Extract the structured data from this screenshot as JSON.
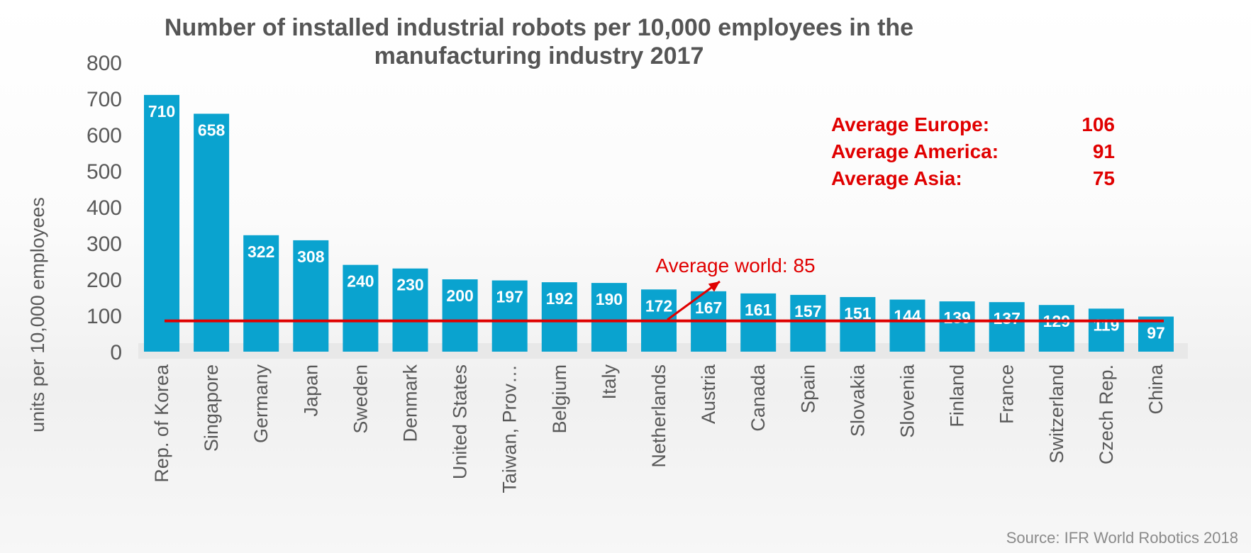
{
  "title_line1": "Number of installed industrial robots per 10,000 employees in the",
  "title_line2": "manufacturing industry 2017",
  "source": "Source: IFR World Robotics 2018",
  "averages": [
    {
      "label": "Average Europe:",
      "value": "106"
    },
    {
      "label": "Average America:",
      "value": "91"
    },
    {
      "label": "Average Asia:",
      "value": "75"
    }
  ],
  "colors": {
    "bar": "#0aa3cf",
    "line": "#e00000",
    "axis_text": "#595959"
  },
  "chart_data": {
    "type": "bar",
    "title": "Number of installed industrial robots per 10,000 employees in the manufacturing industry 2017",
    "ylabel": "units per 10,000 employees",
    "xlabel": "",
    "ylim": [
      0,
      800
    ],
    "yticks": [
      0,
      100,
      200,
      300,
      400,
      500,
      600,
      700,
      800
    ],
    "grid": false,
    "categories": [
      "Rep. of Korea",
      "Singapore",
      "Germany",
      "Japan",
      "Sweden",
      "Denmark",
      "United States",
      "Taiwan, Prov…",
      "Belgium",
      "Italy",
      "Netherlands",
      "Austria",
      "Canada",
      "Spain",
      "Slovakia",
      "Slovenia",
      "Finland",
      "France",
      "Switzerland",
      "Czech Rep.",
      "China"
    ],
    "values": [
      710,
      658,
      322,
      308,
      240,
      230,
      200,
      197,
      192,
      190,
      172,
      167,
      161,
      157,
      151,
      144,
      139,
      137,
      129,
      119,
      97
    ],
    "reference_line": {
      "label": "Average world: 85",
      "value": 85
    }
  }
}
